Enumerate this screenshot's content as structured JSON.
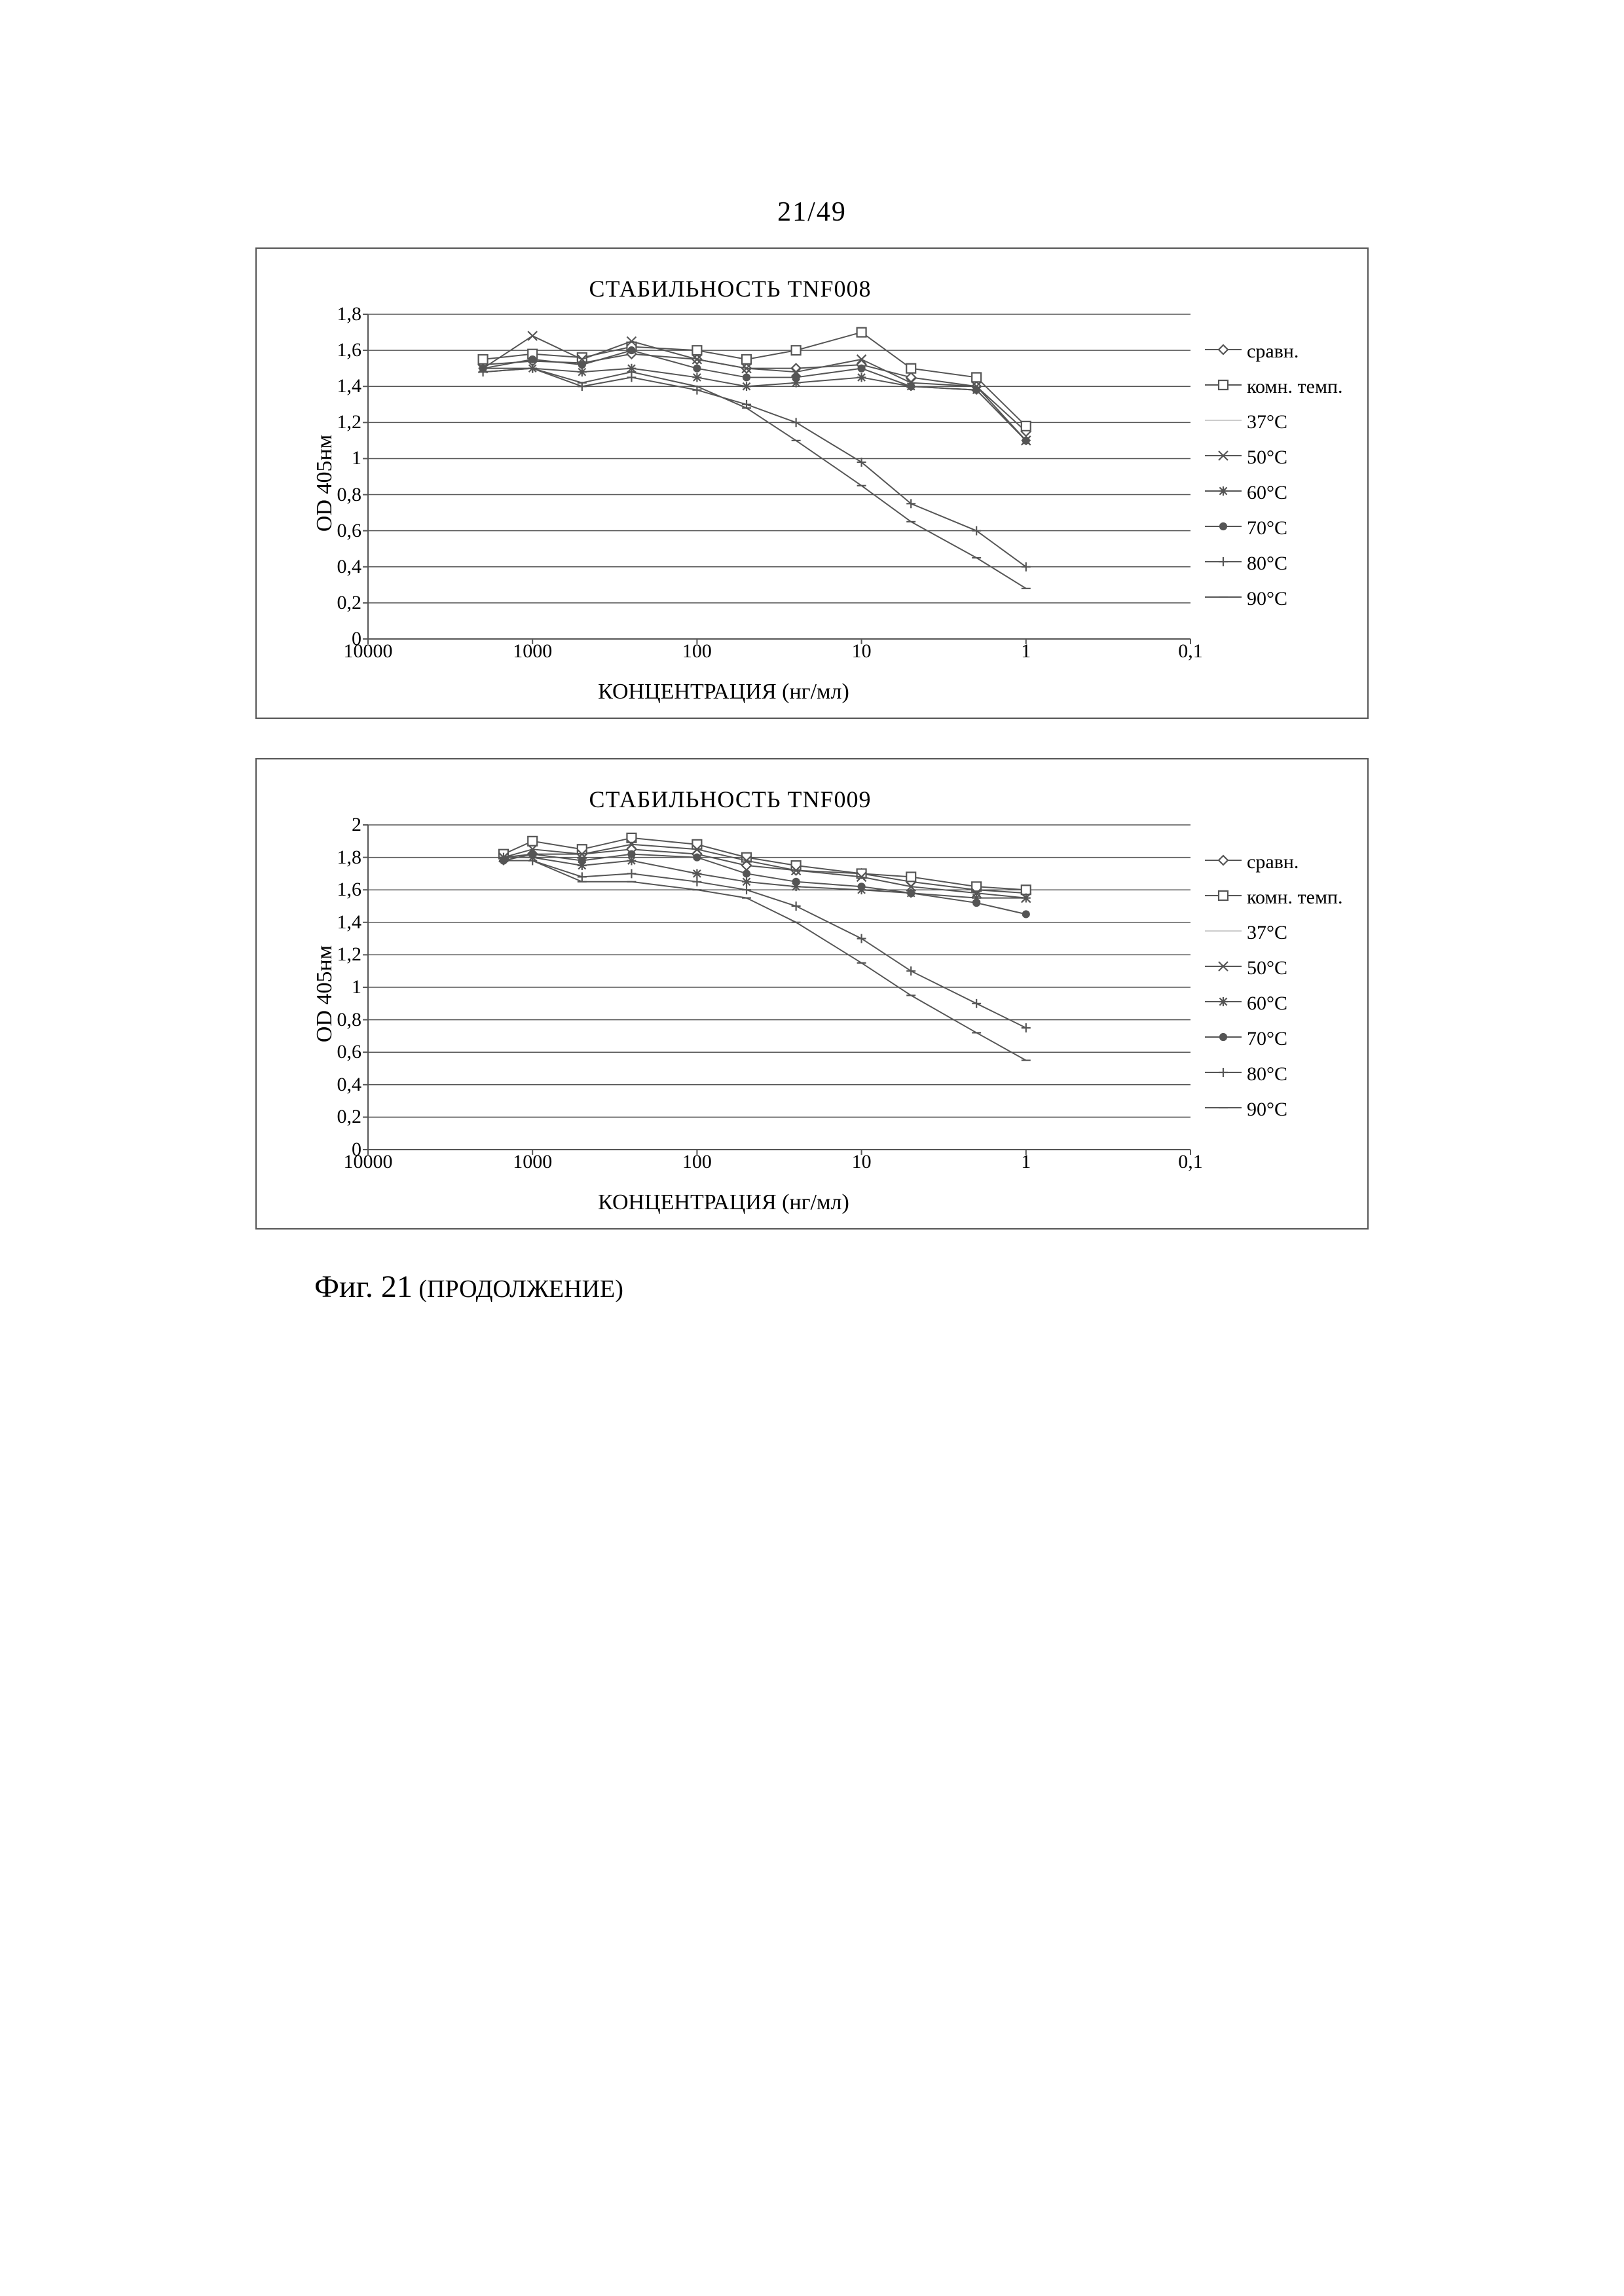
{
  "page_number": "21/49",
  "figure_caption_main": "Фиг. 21",
  "figure_caption_cont": " (ПРОДОЛЖЕНИЕ)",
  "shared_axes": {
    "y_label": "OD 405нм",
    "x_label": "КОНЦЕНТРАЦИЯ (нг/мл)",
    "x_ticks": [
      "10000",
      "1000",
      "100",
      "10",
      "1",
      "0,1"
    ],
    "x_tick_positions_pct": [
      0,
      20,
      40,
      60,
      80,
      100
    ],
    "grid_color": "#555555",
    "line_width": 2
  },
  "legend_items": [
    {
      "label": "сравн.",
      "marker": "diamond",
      "color": "#555555"
    },
    {
      "label": "комн. темп.",
      "marker": "square",
      "color": "#555555"
    },
    {
      "label": "37°C",
      "marker": "none",
      "color": "#cccccc"
    },
    {
      "label": "50°C",
      "marker": "x",
      "color": "#555555"
    },
    {
      "label": "60°C",
      "marker": "star",
      "color": "#555555"
    },
    {
      "label": "70°C",
      "marker": "disc",
      "color": "#555555"
    },
    {
      "label": "80°C",
      "marker": "plus",
      "color": "#555555"
    },
    {
      "label": "90°C",
      "marker": "dash",
      "color": "#555555"
    }
  ],
  "charts": [
    {
      "title": "СТАБИЛЬНОСТЬ TNF008",
      "y_max": 1.8,
      "y_step": 0.2,
      "y_ticks": [
        "0",
        "0,2",
        "0,4",
        "0,6",
        "0,8",
        "1",
        "1,2",
        "1,4",
        "1,6",
        "1,8"
      ],
      "series": [
        {
          "key": "sravn",
          "marker": "diamond",
          "color": "#555555",
          "points": [
            {
              "x": 2000,
              "y": 1.52
            },
            {
              "x": 1000,
              "y": 1.54
            },
            {
              "x": 500,
              "y": 1.53
            },
            {
              "x": 250,
              "y": 1.58
            },
            {
              "x": 100,
              "y": 1.55
            },
            {
              "x": 50,
              "y": 1.5
            },
            {
              "x": 25,
              "y": 1.5
            },
            {
              "x": 10,
              "y": 1.52
            },
            {
              "x": 5,
              "y": 1.45
            },
            {
              "x": 2,
              "y": 1.4
            },
            {
              "x": 1,
              "y": 1.15
            }
          ]
        },
        {
          "key": "rt",
          "marker": "square",
          "color": "#555555",
          "points": [
            {
              "x": 2000,
              "y": 1.55
            },
            {
              "x": 1000,
              "y": 1.58
            },
            {
              "x": 500,
              "y": 1.56
            },
            {
              "x": 250,
              "y": 1.62
            },
            {
              "x": 100,
              "y": 1.6
            },
            {
              "x": 50,
              "y": 1.55
            },
            {
              "x": 25,
              "y": 1.6
            },
            {
              "x": 10,
              "y": 1.7
            },
            {
              "x": 5,
              "y": 1.5
            },
            {
              "x": 2,
              "y": 1.45
            },
            {
              "x": 1,
              "y": 1.18
            }
          ]
        },
        {
          "key": "50",
          "marker": "x",
          "color": "#555555",
          "points": [
            {
              "x": 2000,
              "y": 1.5
            },
            {
              "x": 1000,
              "y": 1.68
            },
            {
              "x": 500,
              "y": 1.55
            },
            {
              "x": 250,
              "y": 1.65
            },
            {
              "x": 100,
              "y": 1.55
            },
            {
              "x": 50,
              "y": 1.5
            },
            {
              "x": 25,
              "y": 1.48
            },
            {
              "x": 10,
              "y": 1.55
            },
            {
              "x": 5,
              "y": 1.42
            },
            {
              "x": 2,
              "y": 1.4
            },
            {
              "x": 1,
              "y": 1.1
            }
          ]
        },
        {
          "key": "60",
          "marker": "star",
          "color": "#555555",
          "points": [
            {
              "x": 2000,
              "y": 1.5
            },
            {
              "x": 1000,
              "y": 1.5
            },
            {
              "x": 500,
              "y": 1.48
            },
            {
              "x": 250,
              "y": 1.5
            },
            {
              "x": 100,
              "y": 1.45
            },
            {
              "x": 50,
              "y": 1.4
            },
            {
              "x": 25,
              "y": 1.42
            },
            {
              "x": 10,
              "y": 1.45
            },
            {
              "x": 5,
              "y": 1.4
            },
            {
              "x": 2,
              "y": 1.38
            },
            {
              "x": 1,
              "y": 1.1
            }
          ]
        },
        {
          "key": "70",
          "marker": "disc",
          "color": "#555555",
          "points": [
            {
              "x": 2000,
              "y": 1.5
            },
            {
              "x": 1000,
              "y": 1.55
            },
            {
              "x": 500,
              "y": 1.52
            },
            {
              "x": 250,
              "y": 1.6
            },
            {
              "x": 100,
              "y": 1.5
            },
            {
              "x": 50,
              "y": 1.45
            },
            {
              "x": 25,
              "y": 1.45
            },
            {
              "x": 10,
              "y": 1.5
            },
            {
              "x": 5,
              "y": 1.4
            },
            {
              "x": 2,
              "y": 1.38
            },
            {
              "x": 1,
              "y": 1.1
            }
          ]
        },
        {
          "key": "80",
          "marker": "plus",
          "color": "#555555",
          "points": [
            {
              "x": 2000,
              "y": 1.48
            },
            {
              "x": 1000,
              "y": 1.5
            },
            {
              "x": 500,
              "y": 1.4
            },
            {
              "x": 250,
              "y": 1.45
            },
            {
              "x": 100,
              "y": 1.38
            },
            {
              "x": 50,
              "y": 1.3
            },
            {
              "x": 25,
              "y": 1.2
            },
            {
              "x": 10,
              "y": 0.98
            },
            {
              "x": 5,
              "y": 0.75
            },
            {
              "x": 2,
              "y": 0.6
            },
            {
              "x": 1,
              "y": 0.4
            }
          ]
        },
        {
          "key": "90",
          "marker": "dash",
          "color": "#555555",
          "points": [
            {
              "x": 2000,
              "y": 1.48
            },
            {
              "x": 1000,
              "y": 1.5
            },
            {
              "x": 500,
              "y": 1.42
            },
            {
              "x": 250,
              "y": 1.48
            },
            {
              "x": 100,
              "y": 1.4
            },
            {
              "x": 50,
              "y": 1.28
            },
            {
              "x": 25,
              "y": 1.1
            },
            {
              "x": 10,
              "y": 0.85
            },
            {
              "x": 5,
              "y": 0.65
            },
            {
              "x": 2,
              "y": 0.45
            },
            {
              "x": 1,
              "y": 0.28
            }
          ]
        }
      ]
    },
    {
      "title": "СТАБИЛЬНОСТЬ TNF009",
      "y_max": 2.0,
      "y_step": 0.2,
      "y_ticks": [
        "0",
        "0,2",
        "0,4",
        "0,6",
        "0,8",
        "1",
        "1,2",
        "1,4",
        "1,6",
        "1,8",
        "2"
      ],
      "series": [
        {
          "key": "sravn",
          "marker": "diamond",
          "color": "#555555",
          "points": [
            {
              "x": 1500,
              "y": 1.8
            },
            {
              "x": 1000,
              "y": 1.82
            },
            {
              "x": 500,
              "y": 1.82
            },
            {
              "x": 250,
              "y": 1.85
            },
            {
              "x": 100,
              "y": 1.82
            },
            {
              "x": 50,
              "y": 1.75
            },
            {
              "x": 25,
              "y": 1.72
            },
            {
              "x": 10,
              "y": 1.7
            },
            {
              "x": 5,
              "y": 1.65
            },
            {
              "x": 2,
              "y": 1.6
            },
            {
              "x": 1,
              "y": 1.58
            }
          ]
        },
        {
          "key": "rt",
          "marker": "square",
          "color": "#555555",
          "points": [
            {
              "x": 1500,
              "y": 1.82
            },
            {
              "x": 1000,
              "y": 1.9
            },
            {
              "x": 500,
              "y": 1.85
            },
            {
              "x": 250,
              "y": 1.92
            },
            {
              "x": 100,
              "y": 1.88
            },
            {
              "x": 50,
              "y": 1.8
            },
            {
              "x": 25,
              "y": 1.75
            },
            {
              "x": 10,
              "y": 1.7
            },
            {
              "x": 5,
              "y": 1.68
            },
            {
              "x": 2,
              "y": 1.62
            },
            {
              "x": 1,
              "y": 1.6
            }
          ]
        },
        {
          "key": "50",
          "marker": "x",
          "color": "#555555",
          "points": [
            {
              "x": 1500,
              "y": 1.8
            },
            {
              "x": 1000,
              "y": 1.85
            },
            {
              "x": 500,
              "y": 1.82
            },
            {
              "x": 250,
              "y": 1.88
            },
            {
              "x": 100,
              "y": 1.85
            },
            {
              "x": 50,
              "y": 1.78
            },
            {
              "x": 25,
              "y": 1.72
            },
            {
              "x": 10,
              "y": 1.68
            },
            {
              "x": 5,
              "y": 1.62
            },
            {
              "x": 2,
              "y": 1.58
            },
            {
              "x": 1,
              "y": 1.55
            }
          ]
        },
        {
          "key": "60",
          "marker": "star",
          "color": "#555555",
          "points": [
            {
              "x": 1500,
              "y": 1.8
            },
            {
              "x": 1000,
              "y": 1.8
            },
            {
              "x": 500,
              "y": 1.75
            },
            {
              "x": 250,
              "y": 1.78
            },
            {
              "x": 100,
              "y": 1.7
            },
            {
              "x": 50,
              "y": 1.65
            },
            {
              "x": 25,
              "y": 1.62
            },
            {
              "x": 10,
              "y": 1.6
            },
            {
              "x": 5,
              "y": 1.58
            },
            {
              "x": 2,
              "y": 1.55
            },
            {
              "x": 1,
              "y": 1.55
            }
          ]
        },
        {
          "key": "70",
          "marker": "disc",
          "color": "#555555",
          "points": [
            {
              "x": 1500,
              "y": 1.78
            },
            {
              "x": 1000,
              "y": 1.82
            },
            {
              "x": 500,
              "y": 1.78
            },
            {
              "x": 250,
              "y": 1.82
            },
            {
              "x": 100,
              "y": 1.8
            },
            {
              "x": 50,
              "y": 1.7
            },
            {
              "x": 25,
              "y": 1.65
            },
            {
              "x": 10,
              "y": 1.62
            },
            {
              "x": 5,
              "y": 1.58
            },
            {
              "x": 2,
              "y": 1.52
            },
            {
              "x": 1,
              "y": 1.45
            }
          ]
        },
        {
          "key": "80",
          "marker": "plus",
          "color": "#555555",
          "points": [
            {
              "x": 1500,
              "y": 1.78
            },
            {
              "x": 1000,
              "y": 1.78
            },
            {
              "x": 500,
              "y": 1.68
            },
            {
              "x": 250,
              "y": 1.7
            },
            {
              "x": 100,
              "y": 1.65
            },
            {
              "x": 50,
              "y": 1.6
            },
            {
              "x": 25,
              "y": 1.5
            },
            {
              "x": 10,
              "y": 1.3
            },
            {
              "x": 5,
              "y": 1.1
            },
            {
              "x": 2,
              "y": 0.9
            },
            {
              "x": 1,
              "y": 0.75
            }
          ]
        },
        {
          "key": "90",
          "marker": "dash",
          "color": "#555555",
          "points": [
            {
              "x": 1500,
              "y": 1.78
            },
            {
              "x": 1000,
              "y": 1.78
            },
            {
              "x": 500,
              "y": 1.65
            },
            {
              "x": 250,
              "y": 1.65
            },
            {
              "x": 100,
              "y": 1.6
            },
            {
              "x": 50,
              "y": 1.55
            },
            {
              "x": 25,
              "y": 1.4
            },
            {
              "x": 10,
              "y": 1.15
            },
            {
              "x": 5,
              "y": 0.95
            },
            {
              "x": 2,
              "y": 0.72
            },
            {
              "x": 1,
              "y": 0.55
            }
          ]
        }
      ]
    }
  ]
}
